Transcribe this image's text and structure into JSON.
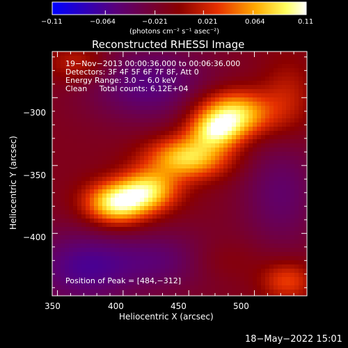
{
  "colorbar": {
    "tick_labels": [
      "−0.11",
      "−0.064",
      "−0.021",
      "0.021",
      "0.064",
      "0.11"
    ],
    "unit_label": "(photons cm⁻² s⁻¹ asec⁻²)"
  },
  "header": {
    "time_range": "19−Nov−2013 00:00:36.000 to 00:06:36.000",
    "detectors": "Detectors: 3F 4F 5F 6F 7F 8F, Att 0",
    "energy_range": "Energy Range: 3.0 − 6.0 keV",
    "method_counts": "Clean     Total counts: 6.12E+04"
  },
  "peak_text": "Position of Peak = [484,−312]",
  "footer_timestamp": "18−May−2022 15:01",
  "chart_data": {
    "type": "heatmap",
    "title": "Reconstructed RHESSI Image",
    "xlabel": "Heliocentric X (arcsec)",
    "ylabel": "Heliocentric Y (arcsec)",
    "xlim": [
      346,
      540
    ],
    "ylim": [
      -446,
      -266
    ],
    "x_ticks": [
      350,
      400,
      450,
      500
    ],
    "y_ticks": [
      -300,
      -350,
      -400
    ],
    "x_tick_labels": [
      "350",
      "400",
      "450",
      "500"
    ],
    "y_tick_labels": [
      "−300",
      "−350",
      "−400"
    ],
    "colorbar_range": [
      -0.11,
      0.11
    ],
    "colormap": [
      "#0000ff",
      "#5a007a",
      "#8a0000",
      "#e63000",
      "#ffaa00",
      "#ffff60",
      "#ffffff"
    ],
    "peak": [
      484,
      -312
    ],
    "sources": [
      {
        "x": 395,
        "y": -378,
        "sx": 17,
        "sy": 11,
        "amp": 0.11
      },
      {
        "x": 420,
        "y": -368,
        "sx": 16,
        "sy": 11,
        "amp": 0.085
      },
      {
        "x": 450,
        "y": -344,
        "sx": 22,
        "sy": 11,
        "amp": 0.095
      },
      {
        "x": 484,
        "y": -312,
        "sx": 20,
        "sy": 12,
        "amp": 0.105
      },
      {
        "x": 470,
        "y": -325,
        "sx": 14,
        "sy": 9,
        "amp": 0.07
      },
      {
        "x": 365,
        "y": -275,
        "sx": 16,
        "sy": 10,
        "amp": 0.035
      },
      {
        "x": 525,
        "y": -300,
        "sx": 14,
        "sy": 20,
        "amp": 0.03
      },
      {
        "x": 525,
        "y": -435,
        "sx": 14,
        "sy": 10,
        "amp": 0.05
      },
      {
        "x": 470,
        "y": -420,
        "sx": 24,
        "sy": 12,
        "amp": 0.025
      }
    ],
    "negatives": [
      {
        "x": 420,
        "y": -290,
        "sx": 34,
        "sy": 20,
        "amp": -0.045
      },
      {
        "x": 370,
        "y": -425,
        "sx": 30,
        "sy": 20,
        "amp": -0.05
      },
      {
        "x": 440,
        "y": -420,
        "sx": 30,
        "sy": 15,
        "amp": -0.04
      },
      {
        "x": 520,
        "y": -370,
        "sx": 22,
        "sy": 30,
        "amp": -0.035
      }
    ]
  }
}
